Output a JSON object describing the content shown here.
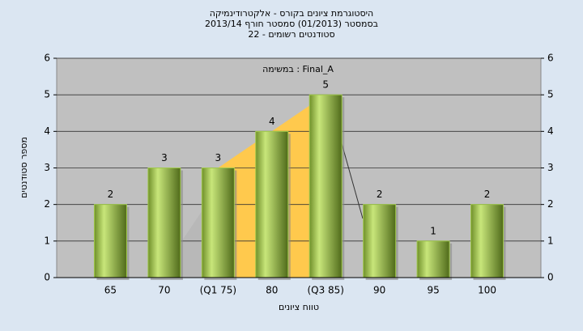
{
  "chart_data": {
    "type": "bar",
    "title_lines": [
      "היסטוגרמת ציונים בקורס - אלקטרודינמיקה",
      "בסמסטר (01/2013)  סמסטר חורף 2013/14",
      "סטודנטים רשומים - 22"
    ],
    "annotation": "במשימה : Final_A",
    "y_label": "מספר סטודנטים",
    "x_label": "טווח ציונים",
    "categories": [
      "65",
      "70",
      "(Q1 75)",
      "80",
      "(Q3 85)",
      "90",
      "95",
      "100"
    ],
    "values": [
      2,
      3,
      3,
      4,
      5,
      2,
      1,
      2
    ],
    "color": "#9fc84a",
    "ylim": [
      0,
      6
    ],
    "yticks": [
      0,
      1,
      2,
      3,
      4,
      5,
      6
    ],
    "y2lim": [
      0,
      6
    ],
    "y2ticks": [
      0,
      1,
      2,
      3,
      4,
      5,
      6
    ],
    "grid": true
  }
}
